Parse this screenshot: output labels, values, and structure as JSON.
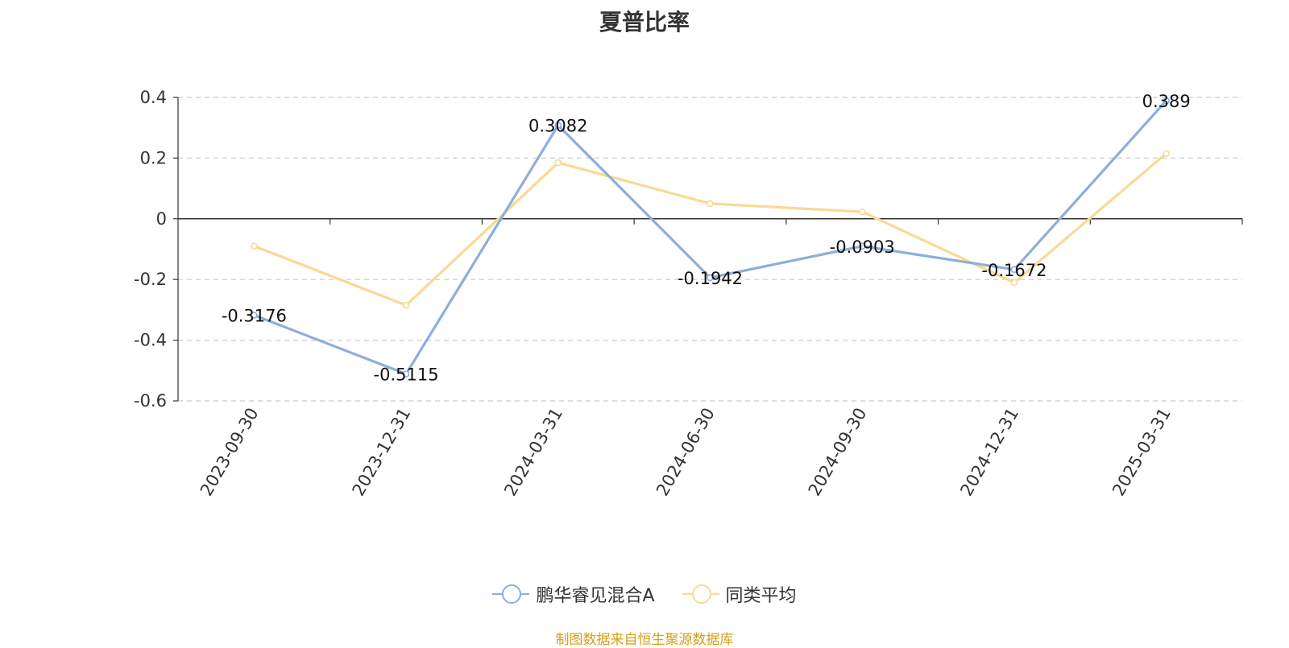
{
  "chart_data": {
    "type": "line",
    "title": "夏普比率",
    "categories": [
      "2023-09-30",
      "2023-12-31",
      "2024-03-31",
      "2024-06-30",
      "2024-09-30",
      "2024-12-31",
      "2025-03-31"
    ],
    "ylim": [
      -0.6,
      0.4
    ],
    "yticks": [
      0.4,
      0.2,
      0,
      -0.2,
      -0.4,
      -0.6
    ],
    "yticks_labels": [
      "0.4",
      "0.2",
      "0",
      "-0.2",
      "-0.4",
      "-0.6"
    ],
    "grid": true,
    "legend_position": "bottom",
    "series": [
      {
        "name": "鹏华睿见混合A",
        "color": "#8eaedb",
        "values": [
          -0.3176,
          -0.5115,
          0.3082,
          -0.1942,
          -0.0903,
          -0.1672,
          0.389
        ],
        "labels": [
          "-0.3176",
          "-0.5115",
          "0.3082",
          "-0.1942",
          "-0.0903",
          "-0.1672",
          "0.389"
        ]
      },
      {
        "name": "同类平均",
        "color": "#f9d995",
        "values": [
          -0.09,
          -0.285,
          0.185,
          0.05,
          0.023,
          -0.21,
          0.215
        ]
      }
    ]
  },
  "source_note": "制图数据来自恒生聚源数据库"
}
